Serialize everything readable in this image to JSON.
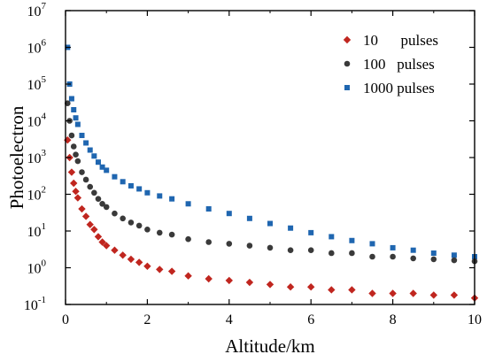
{
  "chart_data": {
    "type": "scatter",
    "title": "",
    "xlabel": "Altitude/km",
    "ylabel": "Photoelectron",
    "xlim": [
      0,
      10
    ],
    "ylim": [
      0.1,
      10000000
    ],
    "yscale": "log",
    "x_ticks": [
      "0",
      "2",
      "4",
      "6",
      "8",
      "10"
    ],
    "y_ticks": [
      {
        "base": "10",
        "exp": "-1"
      },
      {
        "base": "10",
        "exp": "0"
      },
      {
        "base": "10",
        "exp": "1"
      },
      {
        "base": "10",
        "exp": "2"
      },
      {
        "base": "10",
        "exp": "3"
      },
      {
        "base": "10",
        "exp": "4"
      },
      {
        "base": "10",
        "exp": "5"
      },
      {
        "base": "10",
        "exp": "6"
      },
      {
        "base": "10",
        "exp": "7"
      }
    ],
    "grid": false,
    "legend_position": "top-right",
    "series": [
      {
        "name": "10      pulses",
        "marker": "diamond",
        "color": "#c0261f",
        "x": [
          0.05,
          0.1,
          0.15,
          0.2,
          0.25,
          0.3,
          0.4,
          0.5,
          0.6,
          0.7,
          0.8,
          0.9,
          1.0,
          1.2,
          1.4,
          1.6,
          1.8,
          2.0,
          2.3,
          2.6,
          3.0,
          3.5,
          4.0,
          4.5,
          5.0,
          5.5,
          6.0,
          6.5,
          7.0,
          7.5,
          8.0,
          8.5,
          9.0,
          9.5,
          10.0
        ],
        "values": [
          3000,
          1000,
          400,
          200,
          120,
          80,
          40,
          25,
          15,
          11,
          7,
          5,
          4,
          3,
          2.2,
          1.7,
          1.4,
          1.1,
          0.9,
          0.8,
          0.6,
          0.5,
          0.45,
          0.4,
          0.35,
          0.3,
          0.3,
          0.25,
          0.25,
          0.2,
          0.2,
          0.2,
          0.18,
          0.18,
          0.15
        ]
      },
      {
        "name": "100   pulses",
        "marker": "circle",
        "color": "#3a3a3a",
        "x": [
          0.05,
          0.1,
          0.15,
          0.2,
          0.25,
          0.3,
          0.4,
          0.5,
          0.6,
          0.7,
          0.8,
          0.9,
          1.0,
          1.2,
          1.4,
          1.6,
          1.8,
          2.0,
          2.3,
          2.6,
          3.0,
          3.5,
          4.0,
          4.5,
          5.0,
          5.5,
          6.0,
          6.5,
          7.0,
          7.5,
          8.0,
          8.5,
          9.0,
          9.5,
          10.0
        ],
        "values": [
          30000,
          10000,
          4000,
          2000,
          1200,
          800,
          400,
          250,
          160,
          110,
          75,
          55,
          45,
          30,
          22,
          17,
          14,
          11,
          9,
          8,
          6,
          5,
          4.5,
          4,
          3.5,
          3,
          3,
          2.5,
          2.5,
          2,
          2,
          1.8,
          1.7,
          1.6,
          1.5
        ]
      },
      {
        "name": "1000 pulses",
        "marker": "square",
        "color": "#1f66b0",
        "x": [
          0.05,
          0.1,
          0.15,
          0.2,
          0.25,
          0.3,
          0.4,
          0.5,
          0.6,
          0.7,
          0.8,
          0.9,
          1.0,
          1.2,
          1.4,
          1.6,
          1.8,
          2.0,
          2.3,
          2.6,
          3.0,
          3.5,
          4.0,
          4.5,
          5.0,
          5.5,
          6.0,
          6.5,
          7.0,
          7.5,
          8.0,
          8.5,
          9.0,
          9.5,
          10.0
        ],
        "values": [
          1000000,
          100000,
          40000,
          20000,
          12000,
          8000,
          4000,
          2500,
          1600,
          1100,
          750,
          550,
          450,
          300,
          220,
          170,
          140,
          110,
          90,
          75,
          55,
          40,
          30,
          22,
          16,
          12,
          9,
          7,
          5.5,
          4.5,
          3.5,
          3,
          2.5,
          2.2,
          2
        ]
      }
    ]
  }
}
